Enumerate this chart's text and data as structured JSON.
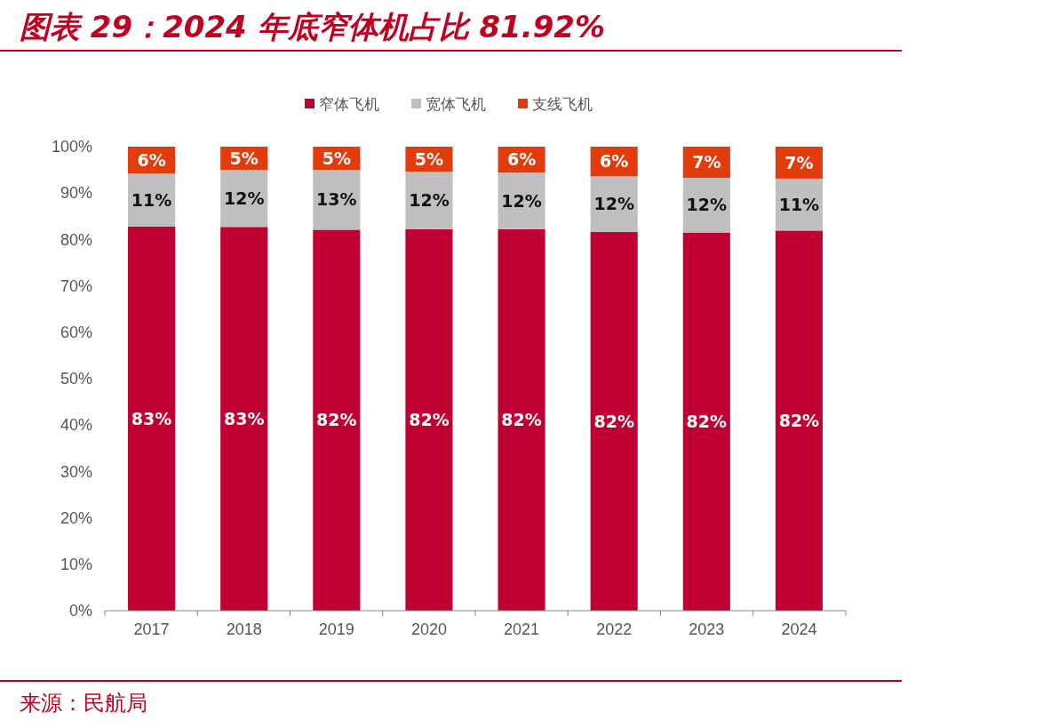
{
  "chart_data": {
    "type": "bar",
    "title": "图表 29：2024 年底窄体机占比 81.92%",
    "annotations": [
      "来源：民航局"
    ],
    "categories": [
      "2017",
      "2018",
      "2019",
      "2020",
      "2021",
      "2022",
      "2023",
      "2024"
    ],
    "stacked": true,
    "legend": "top",
    "grid": false,
    "ylim": [
      0,
      100
    ],
    "yticks": [
      {
        "value": 0,
        "label": "0%"
      },
      {
        "value": 10,
        "label": "10%"
      },
      {
        "value": 20,
        "label": "20%"
      },
      {
        "value": 30,
        "label": "30%"
      },
      {
        "value": 40,
        "label": "40%"
      },
      {
        "value": 50,
        "label": "50%"
      },
      {
        "value": 60,
        "label": "60%"
      },
      {
        "value": 70,
        "label": "70%"
      },
      {
        "value": 80,
        "label": "80%"
      },
      {
        "value": 90,
        "label": "90%"
      },
      {
        "value": 100,
        "label": "100%"
      }
    ],
    "series": [
      {
        "name": "窄体飞机",
        "color": "#c00030",
        "values": [
          82.8,
          82.7,
          82.1,
          82.2,
          82.2,
          81.6,
          81.5,
          81.92
        ],
        "value_labels": [
          "83%",
          "83%",
          "82%",
          "82%",
          "82%",
          "82%",
          "82%",
          "82%"
        ]
      },
      {
        "name": "宽体飞机",
        "color": "#bfbfbf",
        "values": [
          11.4,
          12.3,
          12.9,
          12.4,
          12.2,
          12.0,
          11.8,
          11.2
        ],
        "value_labels": [
          "11%",
          "12%",
          "13%",
          "12%",
          "12%",
          "12%",
          "12%",
          "11%"
        ]
      },
      {
        "name": "支线飞机",
        "color": "#e33c0c",
        "values": [
          5.8,
          5.0,
          5.0,
          5.4,
          5.6,
          6.4,
          6.7,
          6.88
        ],
        "value_labels": [
          "6%",
          "5%",
          "5%",
          "5%",
          "6%",
          "6%",
          "7%",
          "7%"
        ]
      }
    ]
  }
}
